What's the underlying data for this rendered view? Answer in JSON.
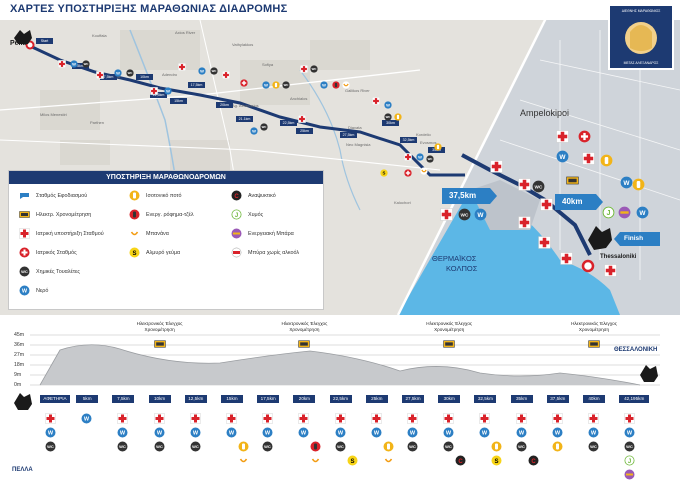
{
  "header": {
    "title": "ΧΑΡΤΕΣ ΥΠΟΣΤΗΡΙΞΗΣ ΜΑΡΑΘΩΝΙΑΣ ΔΙΑΔΡΟΜΗΣ"
  },
  "logo": {
    "top": "ΔΙΕΘΝΗΣ ΜΑΡΑΘΩΝΙΟΣ",
    "bottom": "ΜΕΓΑΣ ΑΛΕΞΑΝΔΡΟΣ"
  },
  "map": {
    "start_label": "Pella",
    "finish_label": "Thessaloniki",
    "finish_tag": "Finish",
    "district_label": "Ampelokipoi",
    "gulf_label_1": "ΘΕΡΜΑΪΚΟΣ",
    "gulf_label_2": "ΚΟΛΠΟΣ",
    "callout_37": "37,5km",
    "callout_40": "40km",
    "places": [
      "Axios River",
      "Kouffala",
      "Vathylakkos",
      "Chalkidona",
      "Sofiya",
      "Kalochori",
      "Adendro",
      "Anchialos",
      "Ag. Athanasios",
      "Gallikos River",
      "Milos Menestiri",
      "Parthen",
      "Diavata",
      "Kordelio",
      "Evosmos",
      "Neo Magnisia",
      "Kalochori"
    ],
    "km_markers": [
      "Start",
      "5km",
      "7,5km",
      "10km",
      "12,5km",
      "15km",
      "17,5km",
      "20km",
      "21.1km",
      "22,5km",
      "25km",
      "27,5km",
      "30km",
      "32,5km",
      "35km"
    ]
  },
  "legend": {
    "title": "ΥΠΟΣΤΗΡΙΞΗ ΜΑΡΑΘΩΝΟΔΡΟΜΩΝ",
    "items": [
      {
        "label": "Σταθμός Εφοδιασμού",
        "icon": "water-station-icon"
      },
      {
        "label": "Ηλεκτρ. Χρονομέτρηση",
        "icon": "timing-chip-icon"
      },
      {
        "label": "Ιατρική υποστήριξη Σταθμού",
        "icon": "medical-cross-icon"
      },
      {
        "label": "Ιατρικός Σταθμός",
        "icon": "medical-station-icon"
      },
      {
        "label": "Χημικές Τουαλέτες",
        "icon": "wc-icon"
      },
      {
        "label": "Νερό",
        "icon": "water-icon"
      },
      {
        "label": "Ισοτονικό ποτό",
        "icon": "isotonic-drink-icon"
      },
      {
        "label": "Ενεργ. ρόφημα-τζέλ",
        "icon": "energy-gel-icon"
      },
      {
        "label": "Μπανάνα",
        "icon": "banana-icon"
      },
      {
        "label": "Αλμυρό γεύμα",
        "icon": "salty-meal-icon"
      },
      {
        "label": "Αναψυκτικό",
        "icon": "soft-drink-icon"
      },
      {
        "label": "Χυμός",
        "icon": "juice-icon"
      },
      {
        "label": "Ενεργειακή Μπάρα",
        "icon": "energy-bar-icon"
      },
      {
        "label": "Μπύρα χωρίς αλκοόλ",
        "icon": "non-alcoholic-beer-icon"
      }
    ]
  },
  "profile": {
    "y_labels": [
      "45m",
      "36m",
      "27m",
      "18m",
      "9m",
      "0m"
    ],
    "km_labels": [
      "ΑΦΕΤΗΡΙΑ",
      "5km",
      "7,5km",
      "10km",
      "12,5km",
      "15km",
      "17,5km",
      "20km",
      "22,5km",
      "25km",
      "27,5km",
      "30km",
      "32,5km",
      "35km",
      "37,5km",
      "40km",
      "42,195km"
    ],
    "chrono_label_1": "Ηλεκτρονικός Έλεγχος",
    "chrono_label_2": "Χρονομέτρηση",
    "start_city": "ΠΕΛΛΑ",
    "end_city": "ΘΕΣΣΑΛΟΝΙΚΗ"
  },
  "colors": {
    "navy": "#1d3a72",
    "route": "#1d3a72",
    "medical_red": "#d9222a",
    "water_blue": "#2c7fc4",
    "wc_dark": "#333333",
    "isotonic_yellow": "#f2b418",
    "juice_green": "#6fb83b",
    "banana_orange": "#f39c12"
  }
}
